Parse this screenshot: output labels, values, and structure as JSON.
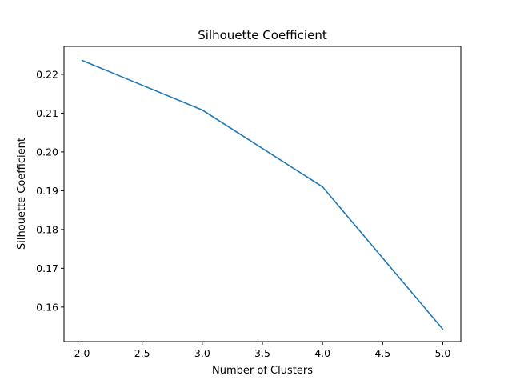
{
  "chart_data": {
    "type": "line",
    "title": "Silhouette Coefficient",
    "xlabel": "Number of Clusters",
    "ylabel": "Silhouette Coefficient",
    "xlim": [
      1.85,
      5.15
    ],
    "ylim": [
      0.1511,
      0.2272
    ],
    "xticks": [
      2.0,
      2.5,
      3.0,
      3.5,
      4.0,
      4.5,
      5.0
    ],
    "xtick_labels": [
      "2.0",
      "2.5",
      "3.0",
      "3.5",
      "4.0",
      "4.5",
      "5.0"
    ],
    "yticks": [
      0.16,
      0.17,
      0.18,
      0.19,
      0.2,
      0.21,
      0.22
    ],
    "ytick_labels": [
      "0.16",
      "0.17",
      "0.18",
      "0.19",
      "0.20",
      "0.21",
      "0.22"
    ],
    "grid": false,
    "legend": "none",
    "series": [
      {
        "x": [
          2,
          3,
          4,
          5
        ],
        "y": [
          0.2236,
          0.2108,
          0.191,
          0.1543
        ],
        "color": "#1f77b4"
      }
    ]
  }
}
